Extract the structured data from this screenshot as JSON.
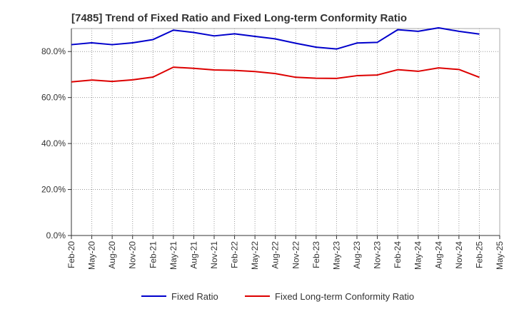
{
  "chart_data": {
    "type": "line",
    "title": "[7485]  Trend of Fixed Ratio and Fixed Long-term Conformity Ratio",
    "xlabel": "",
    "ylabel": "",
    "ylim": [
      0,
      90
    ],
    "yticks": [
      0,
      20,
      40,
      60,
      80
    ],
    "ytick_labels": [
      "0.0%",
      "20.0%",
      "40.0%",
      "60.0%",
      "80.0%"
    ],
    "x": [
      "Feb-20",
      "May-20",
      "Aug-20",
      "Nov-20",
      "Feb-21",
      "May-21",
      "Aug-21",
      "Nov-21",
      "Feb-22",
      "May-22",
      "Aug-22",
      "Nov-22",
      "Feb-23",
      "May-23",
      "Aug-23",
      "Nov-23",
      "Feb-24",
      "May-24",
      "Aug-24",
      "Nov-24",
      "Feb-25",
      "May-25"
    ],
    "series": [
      {
        "name": "Fixed Ratio",
        "color": "#0000cc",
        "values": [
          83.0,
          83.8,
          83.0,
          83.8,
          85.2,
          89.3,
          88.3,
          86.8,
          87.7,
          86.6,
          85.5,
          83.6,
          81.9,
          81.1,
          83.7,
          84.0,
          89.5,
          88.8,
          90.3,
          88.8,
          87.6,
          null
        ]
      },
      {
        "name": "Fixed Long-term Conformity Ratio",
        "color": "#dd0000",
        "values": [
          66.8,
          67.6,
          67.0,
          67.7,
          68.9,
          73.2,
          72.7,
          72.0,
          71.8,
          71.3,
          70.4,
          68.8,
          68.4,
          68.3,
          69.5,
          69.8,
          72.1,
          71.4,
          72.9,
          72.2,
          68.8,
          null
        ]
      }
    ],
    "grid": true,
    "legend_position": "bottom"
  }
}
